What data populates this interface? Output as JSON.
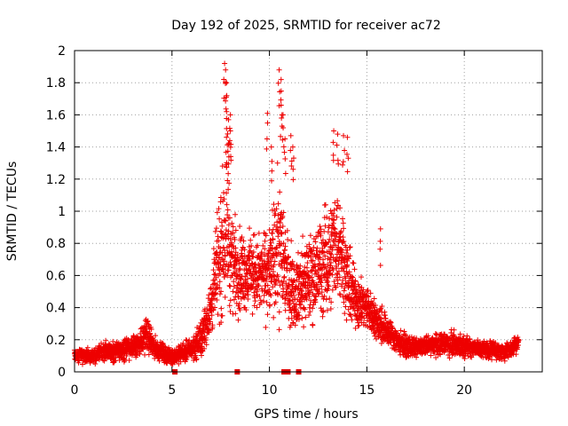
{
  "chart_data": {
    "type": "scatter",
    "title": "Day 192 of 2025, SRMTID for receiver ac72",
    "xlabel": "GPS time / hours",
    "ylabel": "SRMTID / TECUs",
    "xlim": [
      0,
      24
    ],
    "ylim": [
      0,
      2
    ],
    "x_ticks": [
      0,
      5,
      10,
      15,
      20
    ],
    "x_tick_labels": [
      "0",
      "5",
      "10",
      "15",
      "20"
    ],
    "y_ticks": [
      0,
      0.2,
      0.4,
      0.6,
      0.8,
      1,
      1.2,
      1.4,
      1.6,
      1.8,
      2
    ],
    "y_tick_labels": [
      "0",
      "0.2",
      "0.4",
      "0.6",
      "0.8",
      "1",
      "1.2",
      "1.4",
      "1.6",
      "1.8",
      "2"
    ],
    "grid": true,
    "marker": "+",
    "color": "#ee0000",
    "series": [
      {
        "name": "SRMTID",
        "envelope": {
          "x": [
            0.0,
            0.5,
            1.0,
            1.5,
            2.0,
            2.5,
            3.0,
            3.5,
            3.7,
            4.0,
            4.5,
            5.0,
            5.2,
            5.5,
            6.0,
            6.5,
            7.0,
            7.2,
            7.5,
            7.8,
            8.0,
            8.3,
            8.6,
            9.0,
            9.5,
            10.0,
            10.3,
            10.5,
            10.8,
            11.0,
            11.3,
            11.6,
            12.0,
            12.5,
            13.0,
            13.4,
            13.8,
            14.0,
            14.5,
            15.0,
            15.5,
            15.7,
            16.0,
            16.5,
            17.0,
            17.5,
            18.0,
            18.5,
            19.0,
            19.5,
            20.0,
            20.5,
            21.0,
            21.5,
            22.0,
            22.5,
            22.8
          ],
          "center": [
            0.11,
            0.1,
            0.1,
            0.13,
            0.12,
            0.14,
            0.16,
            0.2,
            0.24,
            0.16,
            0.12,
            0.09,
            0.1,
            0.12,
            0.14,
            0.2,
            0.4,
            0.55,
            0.75,
            0.95,
            0.72,
            0.65,
            0.62,
            0.62,
            0.6,
            0.62,
            0.7,
            0.8,
            0.66,
            0.56,
            0.5,
            0.52,
            0.58,
            0.64,
            0.7,
            0.82,
            0.72,
            0.56,
            0.44,
            0.4,
            0.32,
            0.3,
            0.26,
            0.2,
            0.16,
            0.15,
            0.16,
            0.17,
            0.18,
            0.17,
            0.16,
            0.15,
            0.14,
            0.14,
            0.12,
            0.15,
            0.2
          ],
          "spread": [
            0.05,
            0.05,
            0.05,
            0.06,
            0.06,
            0.07,
            0.09,
            0.1,
            0.11,
            0.08,
            0.06,
            0.05,
            0.05,
            0.06,
            0.07,
            0.12,
            0.18,
            0.28,
            0.45,
            0.5,
            0.35,
            0.3,
            0.26,
            0.25,
            0.25,
            0.3,
            0.4,
            0.5,
            0.35,
            0.28,
            0.24,
            0.26,
            0.28,
            0.32,
            0.36,
            0.38,
            0.34,
            0.26,
            0.18,
            0.14,
            0.12,
            0.15,
            0.1,
            0.09,
            0.07,
            0.06,
            0.06,
            0.07,
            0.08,
            0.08,
            0.07,
            0.06,
            0.06,
            0.06,
            0.05,
            0.06,
            0.06
          ]
        },
        "peaks": [
          [
            7.7,
            1.92
          ],
          [
            7.75,
            1.88
          ],
          [
            7.8,
            1.8
          ],
          [
            7.8,
            1.62
          ],
          [
            7.9,
            1.57
          ],
          [
            8.0,
            1.6
          ],
          [
            7.9,
            1.42
          ],
          [
            8.0,
            1.5
          ],
          [
            9.9,
            1.61
          ],
          [
            10.1,
            1.4
          ],
          [
            10.5,
            1.88
          ],
          [
            10.6,
            1.82
          ],
          [
            10.6,
            1.66
          ],
          [
            10.7,
            1.6
          ],
          [
            10.8,
            1.45
          ],
          [
            11.1,
            1.47
          ],
          [
            11.2,
            1.4
          ],
          [
            13.3,
            1.5
          ],
          [
            13.5,
            1.48
          ],
          [
            13.8,
            1.47
          ],
          [
            14.0,
            1.46
          ],
          [
            15.7,
            0.89
          ]
        ],
        "notes": "Dense cloud of '+' markers; approx. 1 observation per 0.005 h"
      }
    ],
    "gap_markers_x": [
      5.15,
      8.35,
      10.75,
      10.85,
      10.95,
      11.5
    ]
  }
}
